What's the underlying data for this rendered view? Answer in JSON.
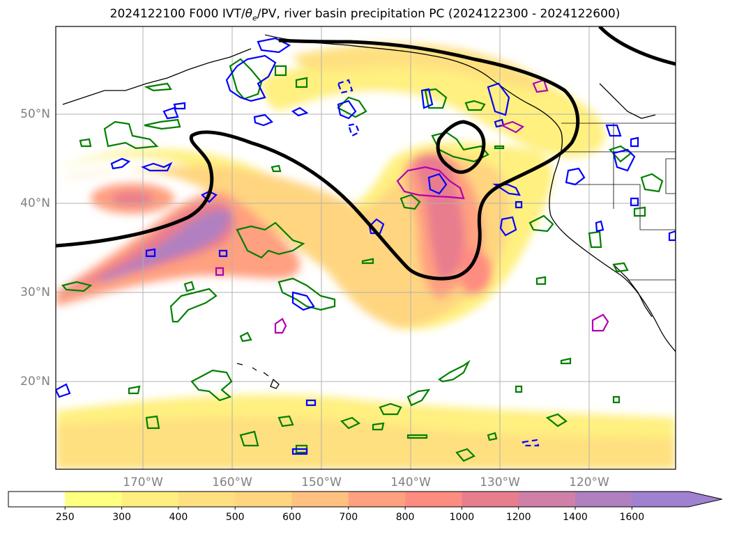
{
  "title": {
    "prefix": "2024122100 F000 IVT/",
    "theta": "θ",
    "theta_sub": "e",
    "suffix": "/PV, river basin precipitation PC (2024122300 - 2024122600)"
  },
  "lat_labels": [
    "50°N",
    "40°N",
    "30°N",
    "20°N"
  ],
  "lon_labels": [
    "170°W",
    "160°W",
    "150°W",
    "140°W",
    "130°W",
    "120°W"
  ],
  "colorbar": {
    "ticks": [
      "250",
      "300",
      "400",
      "500",
      "600",
      "700",
      "800",
      "1000",
      "1200",
      "1400",
      "1600"
    ],
    "colors": [
      "#ffffff",
      "#ffff80",
      "#ffef80",
      "#ffe080",
      "#ffd580",
      "#ffc080",
      "#ffa080",
      "#ff8c80",
      "#e87d8e",
      "#d080a8",
      "#b080c0",
      "#a080d0"
    ],
    "extend": "max"
  },
  "contour_colors": {
    "ivt_jet": "#000000",
    "theta_e": "#007f00",
    "pv_positive": "#0000ff",
    "pv_negative": "#b000b0"
  }
}
